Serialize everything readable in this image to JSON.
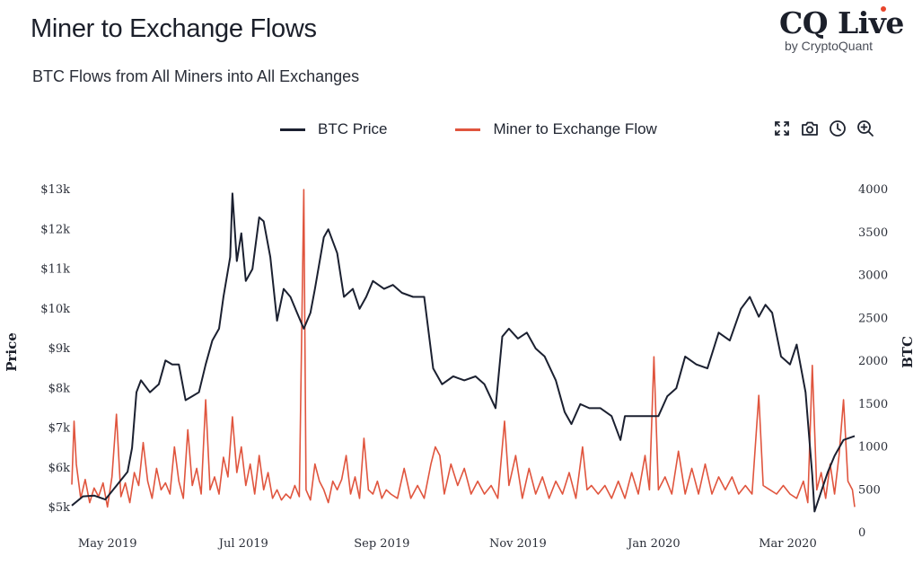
{
  "header": {
    "title": "Miner to Exchange Flows",
    "subtitle": "BTC Flows from All Miners into All Exchanges"
  },
  "logo": {
    "main": "CQ Live",
    "sub": "by CryptoQuant",
    "accent_color": "#e8452c"
  },
  "legend": [
    {
      "label": "BTC Price",
      "color": "#1b2030"
    },
    {
      "label": "Miner to Exchange Flow",
      "color": "#e0553e"
    }
  ],
  "toolbar": [
    {
      "name": "fullscreen-icon"
    },
    {
      "name": "camera-icon"
    },
    {
      "name": "clock-icon"
    },
    {
      "name": "zoom-in-icon"
    }
  ],
  "chart_data": {
    "type": "line",
    "title": "Miner to Exchange Flows",
    "xlabel": "",
    "ylabel_left": "Price",
    "ylabel_right": "BTC",
    "x_range": [
      "2019-04-15",
      "2020-03-31"
    ],
    "x_ticks": [
      {
        "label": "May 2019",
        "date": "2019-05-01"
      },
      {
        "label": "Jul 2019",
        "date": "2019-07-01"
      },
      {
        "label": "Sep 2019",
        "date": "2019-09-01"
      },
      {
        "label": "Nov 2019",
        "date": "2019-11-01"
      },
      {
        "label": "Jan 2020",
        "date": "2020-01-01"
      },
      {
        "label": "Mar 2020",
        "date": "2020-03-01"
      }
    ],
    "y_left": {
      "min": 5000,
      "max": 13000,
      "ticks": [
        5000,
        6000,
        7000,
        8000,
        9000,
        10000,
        11000,
        12000,
        13000
      ],
      "tick_labels": [
        "$5k",
        "$6k",
        "$7k",
        "$8k",
        "$9k",
        "$10k",
        "$11k",
        "$12k",
        "$13k"
      ]
    },
    "y_right": {
      "min": 0,
      "max": 4000,
      "ticks": [
        0,
        500,
        1000,
        1500,
        2000,
        2500,
        3000,
        3500,
        4000
      ],
      "tick_labels": [
        "0",
        "500",
        "1000",
        "1500",
        "2000",
        "2500",
        "3000",
        "3500",
        "4000"
      ]
    },
    "series": [
      {
        "name": "BTC Price",
        "axis": "left",
        "color": "#1b2030",
        "points": [
          [
            "2019-04-15",
            5050
          ],
          [
            "2019-04-20",
            5280
          ],
          [
            "2019-04-25",
            5300
          ],
          [
            "2019-04-30",
            5200
          ],
          [
            "2019-05-05",
            5550
          ],
          [
            "2019-05-10",
            5900
          ],
          [
            "2019-05-12",
            6500
          ],
          [
            "2019-05-14",
            7900
          ],
          [
            "2019-05-16",
            8200
          ],
          [
            "2019-05-20",
            7900
          ],
          [
            "2019-05-24",
            8100
          ],
          [
            "2019-05-27",
            8700
          ],
          [
            "2019-05-30",
            8600
          ],
          [
            "2019-06-02",
            8600
          ],
          [
            "2019-06-05",
            7700
          ],
          [
            "2019-06-08",
            7800
          ],
          [
            "2019-06-11",
            7900
          ],
          [
            "2019-06-14",
            8600
          ],
          [
            "2019-06-17",
            9200
          ],
          [
            "2019-06-20",
            9500
          ],
          [
            "2019-06-22",
            10300
          ],
          [
            "2019-06-25",
            11300
          ],
          [
            "2019-06-26",
            12900
          ],
          [
            "2019-06-28",
            11200
          ],
          [
            "2019-06-30",
            11900
          ],
          [
            "2019-07-02",
            10700
          ],
          [
            "2019-07-05",
            11000
          ],
          [
            "2019-07-08",
            12300
          ],
          [
            "2019-07-10",
            12200
          ],
          [
            "2019-07-13",
            11300
          ],
          [
            "2019-07-16",
            9700
          ],
          [
            "2019-07-19",
            10500
          ],
          [
            "2019-07-22",
            10300
          ],
          [
            "2019-07-25",
            9900
          ],
          [
            "2019-07-28",
            9500
          ],
          [
            "2019-07-31",
            9900
          ],
          [
            "2019-08-02",
            10500
          ],
          [
            "2019-08-06",
            11800
          ],
          [
            "2019-08-08",
            12000
          ],
          [
            "2019-08-12",
            11400
          ],
          [
            "2019-08-15",
            10300
          ],
          [
            "2019-08-19",
            10500
          ],
          [
            "2019-08-22",
            10000
          ],
          [
            "2019-08-25",
            10300
          ],
          [
            "2019-08-28",
            10700
          ],
          [
            "2019-09-02",
            10500
          ],
          [
            "2019-09-06",
            10600
          ],
          [
            "2019-09-10",
            10400
          ],
          [
            "2019-09-15",
            10300
          ],
          [
            "2019-09-20",
            10300
          ],
          [
            "2019-09-24",
            8500
          ],
          [
            "2019-09-28",
            8100
          ],
          [
            "2019-10-03",
            8300
          ],
          [
            "2019-10-08",
            8200
          ],
          [
            "2019-10-13",
            8300
          ],
          [
            "2019-10-17",
            8100
          ],
          [
            "2019-10-22",
            7500
          ],
          [
            "2019-10-25",
            9300
          ],
          [
            "2019-10-28",
            9500
          ],
          [
            "2019-11-01",
            9250
          ],
          [
            "2019-11-05",
            9400
          ],
          [
            "2019-11-09",
            9000
          ],
          [
            "2019-11-13",
            8800
          ],
          [
            "2019-11-18",
            8200
          ],
          [
            "2019-11-22",
            7400
          ],
          [
            "2019-11-25",
            7100
          ],
          [
            "2019-11-29",
            7600
          ],
          [
            "2019-12-03",
            7500
          ],
          [
            "2019-12-08",
            7500
          ],
          [
            "2019-12-13",
            7300
          ],
          [
            "2019-12-17",
            6700
          ],
          [
            "2019-12-19",
            7300
          ],
          [
            "2019-12-24",
            7300
          ],
          [
            "2019-12-29",
            7300
          ],
          [
            "2020-01-03",
            7300
          ],
          [
            "2020-01-07",
            7800
          ],
          [
            "2020-01-11",
            8000
          ],
          [
            "2020-01-15",
            8800
          ],
          [
            "2020-01-20",
            8600
          ],
          [
            "2020-01-25",
            8500
          ],
          [
            "2020-01-30",
            9400
          ],
          [
            "2020-02-04",
            9200
          ],
          [
            "2020-02-09",
            10000
          ],
          [
            "2020-02-13",
            10300
          ],
          [
            "2020-02-17",
            9800
          ],
          [
            "2020-02-20",
            10100
          ],
          [
            "2020-02-23",
            9900
          ],
          [
            "2020-02-27",
            8800
          ],
          [
            "2020-03-02",
            8600
          ],
          [
            "2020-03-05",
            9100
          ],
          [
            "2020-03-09",
            7900
          ],
          [
            "2020-03-12",
            5800
          ],
          [
            "2020-03-13",
            4900
          ],
          [
            "2020-03-16",
            5400
          ],
          [
            "2020-03-19",
            5900
          ],
          [
            "2020-03-22",
            6300
          ],
          [
            "2020-03-26",
            6700
          ],
          [
            "2020-03-31",
            6800
          ]
        ]
      },
      {
        "name": "Miner to Exchange Flow",
        "axis": "right",
        "color": "#e0553e",
        "points": [
          [
            "2019-04-15",
            560
          ],
          [
            "2019-04-16",
            1300
          ],
          [
            "2019-04-17",
            800
          ],
          [
            "2019-04-19",
            400
          ],
          [
            "2019-04-21",
            620
          ],
          [
            "2019-04-23",
            350
          ],
          [
            "2019-04-25",
            520
          ],
          [
            "2019-04-27",
            420
          ],
          [
            "2019-04-29",
            580
          ],
          [
            "2019-05-01",
            300
          ],
          [
            "2019-05-03",
            650
          ],
          [
            "2019-05-05",
            1380
          ],
          [
            "2019-05-07",
            420
          ],
          [
            "2019-05-09",
            580
          ],
          [
            "2019-05-11",
            350
          ],
          [
            "2019-05-13",
            700
          ],
          [
            "2019-05-15",
            550
          ],
          [
            "2019-05-17",
            1050
          ],
          [
            "2019-05-19",
            600
          ],
          [
            "2019-05-21",
            400
          ],
          [
            "2019-05-23",
            750
          ],
          [
            "2019-05-25",
            500
          ],
          [
            "2019-05-27",
            580
          ],
          [
            "2019-05-29",
            450
          ],
          [
            "2019-05-31",
            1000
          ],
          [
            "2019-06-02",
            600
          ],
          [
            "2019-06-04",
            400
          ],
          [
            "2019-06-06",
            1200
          ],
          [
            "2019-06-08",
            550
          ],
          [
            "2019-06-10",
            750
          ],
          [
            "2019-06-12",
            450
          ],
          [
            "2019-06-14",
            1550
          ],
          [
            "2019-06-16",
            500
          ],
          [
            "2019-06-18",
            650
          ],
          [
            "2019-06-20",
            450
          ],
          [
            "2019-06-22",
            880
          ],
          [
            "2019-06-24",
            650
          ],
          [
            "2019-06-26",
            1350
          ],
          [
            "2019-06-28",
            700
          ],
          [
            "2019-06-30",
            1000
          ],
          [
            "2019-07-02",
            550
          ],
          [
            "2019-07-04",
            800
          ],
          [
            "2019-07-06",
            450
          ],
          [
            "2019-07-08",
            900
          ],
          [
            "2019-07-10",
            500
          ],
          [
            "2019-07-12",
            700
          ],
          [
            "2019-07-14",
            400
          ],
          [
            "2019-07-16",
            500
          ],
          [
            "2019-07-18",
            380
          ],
          [
            "2019-07-20",
            450
          ],
          [
            "2019-07-22",
            400
          ],
          [
            "2019-07-24",
            550
          ],
          [
            "2019-07-26",
            420
          ],
          [
            "2019-07-28",
            4000
          ],
          [
            "2019-07-29",
            500
          ],
          [
            "2019-07-31",
            380
          ],
          [
            "2019-08-02",
            800
          ],
          [
            "2019-08-04",
            600
          ],
          [
            "2019-08-06",
            500
          ],
          [
            "2019-08-08",
            350
          ],
          [
            "2019-08-10",
            600
          ],
          [
            "2019-08-12",
            500
          ],
          [
            "2019-08-14",
            620
          ],
          [
            "2019-08-16",
            900
          ],
          [
            "2019-08-18",
            450
          ],
          [
            "2019-08-20",
            650
          ],
          [
            "2019-08-22",
            400
          ],
          [
            "2019-08-24",
            1100
          ],
          [
            "2019-08-26",
            500
          ],
          [
            "2019-08-28",
            450
          ],
          [
            "2019-08-30",
            600
          ],
          [
            "2019-09-01",
            400
          ],
          [
            "2019-09-03",
            500
          ],
          [
            "2019-09-05",
            450
          ],
          [
            "2019-09-08",
            400
          ],
          [
            "2019-09-11",
            750
          ],
          [
            "2019-09-14",
            400
          ],
          [
            "2019-09-17",
            550
          ],
          [
            "2019-09-20",
            400
          ],
          [
            "2019-09-23",
            800
          ],
          [
            "2019-09-25",
            1000
          ],
          [
            "2019-09-27",
            900
          ],
          [
            "2019-09-29",
            450
          ],
          [
            "2019-10-02",
            800
          ],
          [
            "2019-10-05",
            550
          ],
          [
            "2019-10-08",
            750
          ],
          [
            "2019-10-11",
            450
          ],
          [
            "2019-10-14",
            600
          ],
          [
            "2019-10-17",
            450
          ],
          [
            "2019-10-20",
            550
          ],
          [
            "2019-10-23",
            400
          ],
          [
            "2019-10-26",
            1300
          ],
          [
            "2019-10-28",
            550
          ],
          [
            "2019-10-31",
            900
          ],
          [
            "2019-11-03",
            400
          ],
          [
            "2019-11-06",
            750
          ],
          [
            "2019-11-09",
            450
          ],
          [
            "2019-11-12",
            650
          ],
          [
            "2019-11-15",
            400
          ],
          [
            "2019-11-18",
            600
          ],
          [
            "2019-11-21",
            450
          ],
          [
            "2019-11-24",
            700
          ],
          [
            "2019-11-27",
            400
          ],
          [
            "2019-11-30",
            1000
          ],
          [
            "2019-12-02",
            500
          ],
          [
            "2019-12-04",
            550
          ],
          [
            "2019-12-07",
            450
          ],
          [
            "2019-12-10",
            550
          ],
          [
            "2019-12-13",
            400
          ],
          [
            "2019-12-16",
            600
          ],
          [
            "2019-12-19",
            400
          ],
          [
            "2019-12-22",
            700
          ],
          [
            "2019-12-25",
            450
          ],
          [
            "2019-12-28",
            900
          ],
          [
            "2019-12-30",
            500
          ],
          [
            "2020-01-01",
            2050
          ],
          [
            "2020-01-03",
            500
          ],
          [
            "2020-01-06",
            650
          ],
          [
            "2020-01-09",
            450
          ],
          [
            "2020-01-12",
            950
          ],
          [
            "2020-01-15",
            450
          ],
          [
            "2020-01-18",
            750
          ],
          [
            "2020-01-21",
            450
          ],
          [
            "2020-01-24",
            800
          ],
          [
            "2020-01-27",
            450
          ],
          [
            "2020-01-30",
            650
          ],
          [
            "2020-02-02",
            500
          ],
          [
            "2020-02-05",
            650
          ],
          [
            "2020-02-08",
            450
          ],
          [
            "2020-02-11",
            550
          ],
          [
            "2020-02-14",
            450
          ],
          [
            "2020-02-17",
            1600
          ],
          [
            "2020-02-19",
            550
          ],
          [
            "2020-02-22",
            500
          ],
          [
            "2020-02-25",
            450
          ],
          [
            "2020-02-28",
            550
          ],
          [
            "2020-03-02",
            450
          ],
          [
            "2020-03-05",
            400
          ],
          [
            "2020-03-08",
            600
          ],
          [
            "2020-03-10",
            350
          ],
          [
            "2020-03-12",
            1950
          ],
          [
            "2020-03-14",
            500
          ],
          [
            "2020-03-16",
            700
          ],
          [
            "2020-03-18",
            400
          ],
          [
            "2020-03-20",
            800
          ],
          [
            "2020-03-22",
            450
          ],
          [
            "2020-03-24",
            900
          ],
          [
            "2020-03-26",
            1550
          ],
          [
            "2020-03-28",
            600
          ],
          [
            "2020-03-30",
            500
          ],
          [
            "2020-03-31",
            300
          ]
        ]
      }
    ]
  }
}
